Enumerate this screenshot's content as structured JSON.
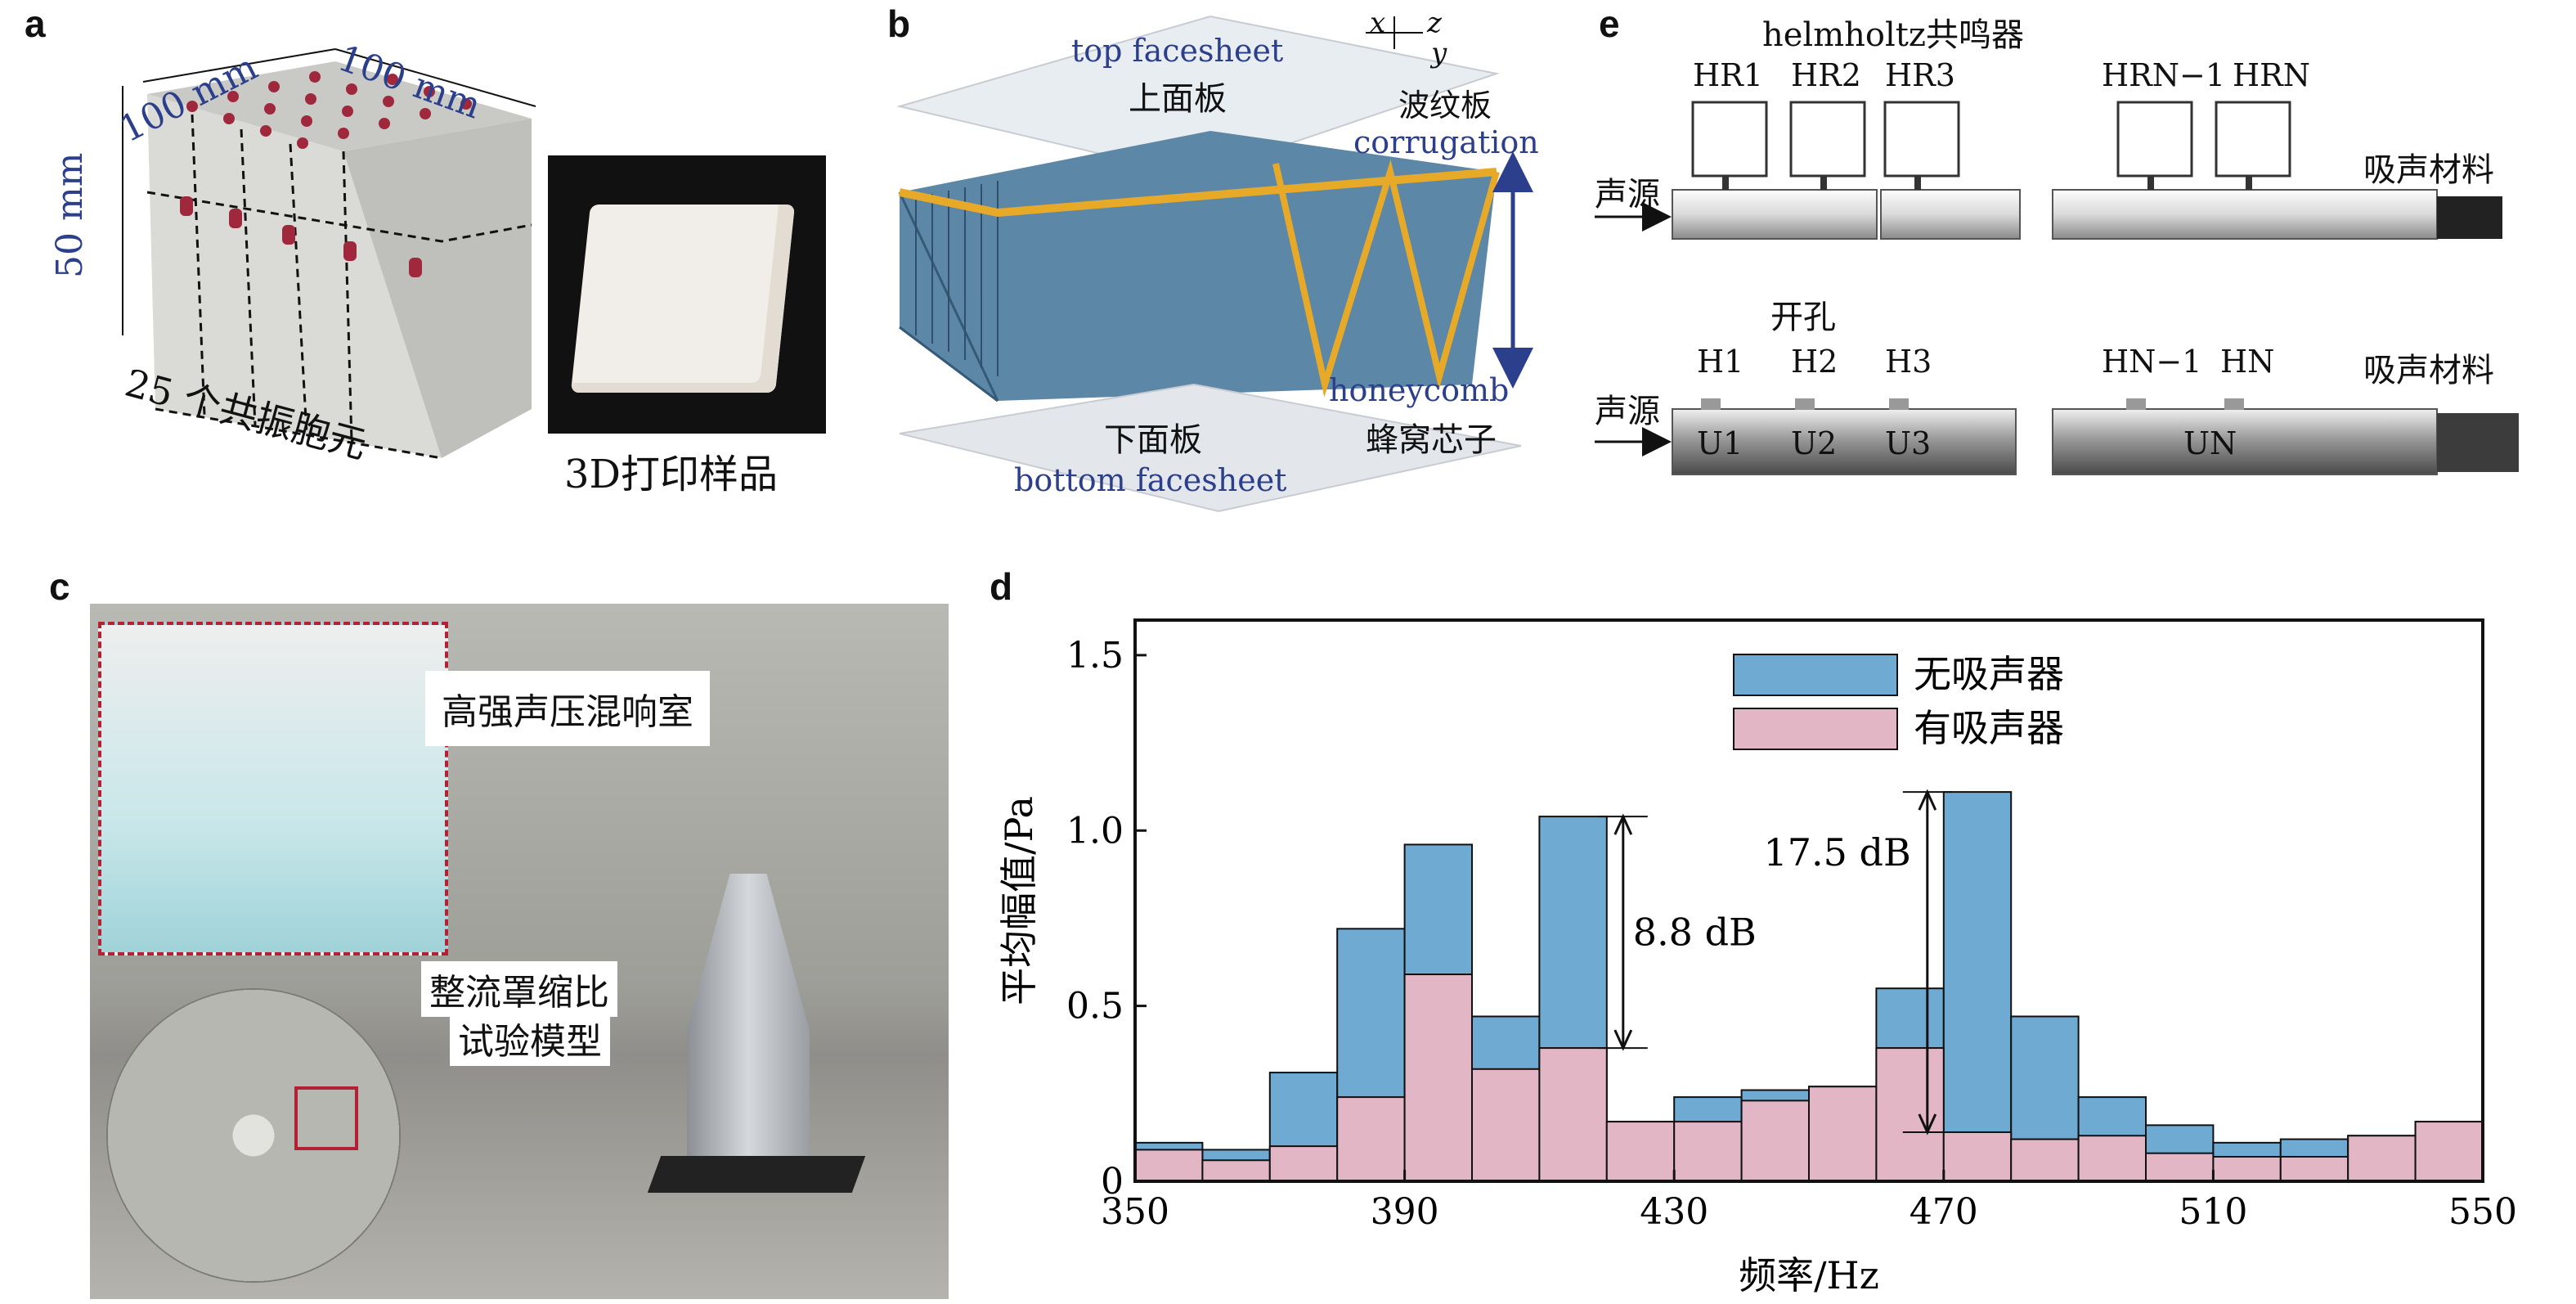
{
  "panel_a": {
    "label": "a",
    "dim_top_left": "100 mm",
    "dim_top_right": "100 mm",
    "dim_height": "50 mm",
    "cells_caption": "25 个共振胞元",
    "photo_caption": "3D打印样品",
    "colors": {
      "body": "#d9d9d6",
      "holes": "#a0283c"
    }
  },
  "panel_b": {
    "label": "b",
    "axis": {
      "x": "x",
      "y": "y",
      "z": "z"
    },
    "top_facesheet_en": "top facesheet",
    "top_facesheet_cn": "上面板",
    "corrugation_cn": "波纹板",
    "corrugation_en": "corrugation",
    "honeycomb_en": "honeycomb",
    "honeycomb_cn": "蜂窝芯子",
    "bottom_facesheet_cn": "下面板",
    "bottom_facesheet_en": "bottom facesheet",
    "colors": {
      "core": "#5d87a6",
      "corrugation": "#e7a928",
      "label_blue": "#2b3f8c"
    }
  },
  "panel_c": {
    "label": "c",
    "room_caption": "高强声压混响室",
    "model_caption_line1": "整流罩缩比",
    "model_caption_line2": "试验模型",
    "colors": {
      "inset_border": "#b22234",
      "inset_fill": "#9fd3d8"
    }
  },
  "panel_d": {
    "label": "d",
    "annotation_1": "8.8 dB",
    "annotation_2": "17.5 dB"
  },
  "panel_e": {
    "label": "e",
    "top_title": "helmholtz共鸣器",
    "resonators_top": [
      "HR1",
      "HR2",
      "HR3",
      "HRN−1",
      "HRN"
    ],
    "source_label": "声源",
    "absorber_label": "吸声材料",
    "holes_title": "开孔",
    "holes": [
      "H1",
      "H2",
      "H3",
      "HN−1",
      "HN"
    ],
    "units": [
      "U1",
      "U2",
      "U3",
      "UN"
    ]
  },
  "chart_data": {
    "type": "bar",
    "xlabel": "频率/Hz",
    "ylabel": "平均幅值/Pa",
    "xlim": [
      350,
      550
    ],
    "ylim": [
      0,
      1.6
    ],
    "xticks": [
      350,
      390,
      430,
      470,
      510,
      550
    ],
    "yticks": [
      0,
      0.5,
      1.0,
      1.5
    ],
    "ytick_labels": [
      "0",
      "0.5",
      "1.0",
      "1.5"
    ],
    "legend_position": "top-center",
    "bin_width": 10,
    "x": [
      350,
      360,
      370,
      380,
      390,
      400,
      410,
      420,
      430,
      440,
      450,
      460,
      470,
      480,
      490,
      500,
      510,
      520,
      530,
      540
    ],
    "series": [
      {
        "name": "无吸声器",
        "color": "#6eaad2",
        "values": [
          0.11,
          0.09,
          0.31,
          0.72,
          0.96,
          0.47,
          1.04,
          0.17,
          0.24,
          0.26,
          0.27,
          0.55,
          1.11,
          0.47,
          0.24,
          0.16,
          0.11,
          0.12,
          0.13,
          0.17
        ]
      },
      {
        "name": "有吸声器",
        "color": "#e2b6c4",
        "values": [
          0.09,
          0.06,
          0.1,
          0.24,
          0.59,
          0.32,
          0.38,
          0.17,
          0.17,
          0.23,
          0.27,
          0.38,
          0.14,
          0.12,
          0.13,
          0.08,
          0.07,
          0.07,
          0.13,
          0.17
        ]
      }
    ]
  }
}
